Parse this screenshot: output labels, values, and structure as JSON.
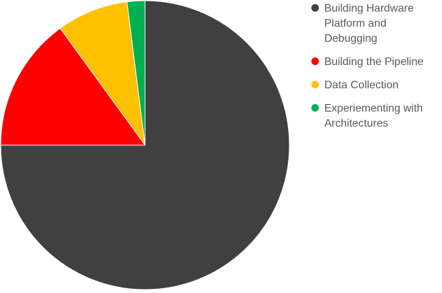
{
  "chart_data": {
    "type": "pie",
    "title": "",
    "start_angle_deg": 90,
    "direction": "clockwise",
    "categories": [
      "Building Hardware Platform and Debugging",
      "Building the Pipeline",
      "Data Collection",
      "Experiementing with Architectures"
    ],
    "values": [
      75,
      15,
      8,
      2
    ],
    "colors": [
      "#404040",
      "#ff0000",
      "#ffc000",
      "#00b050"
    ],
    "legend_position": "right",
    "data_labels": false
  }
}
